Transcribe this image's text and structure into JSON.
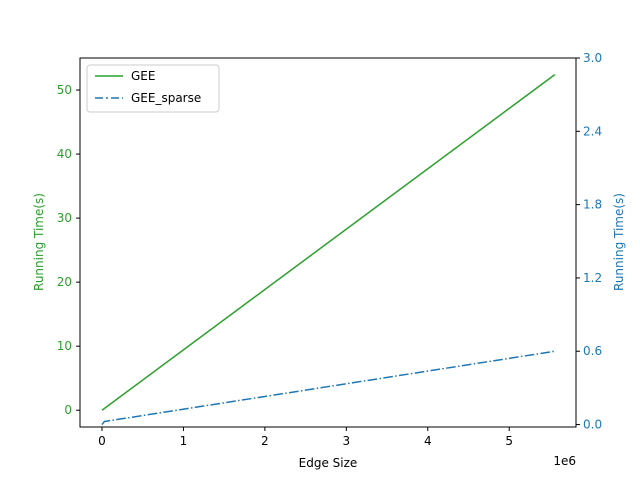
{
  "chart_data": {
    "type": "line",
    "x_scale_note": "1e6",
    "xlabel": "Edge Size",
    "xlim": [
      -270000,
      5820000
    ],
    "x_ticks": [
      0,
      1000000,
      2000000,
      3000000,
      4000000,
      5000000
    ],
    "x_tick_labels": [
      "0",
      "1",
      "2",
      "3",
      "4",
      "5"
    ],
    "y_left": {
      "label": "Running Time(s)",
      "color": "#2ca02c",
      "lim": [
        -2.62,
        55.0
      ],
      "ticks": [
        0,
        10,
        20,
        30,
        40,
        50
      ],
      "tick_labels": [
        "0",
        "10",
        "20",
        "30",
        "40",
        "50"
      ]
    },
    "y_right": {
      "label": "Running Time(s)",
      "color": "#1f77b4",
      "lim": [
        -0.02,
        3.0
      ],
      "ticks": [
        0.0,
        0.6,
        1.2,
        1.8,
        2.4,
        3.0
      ],
      "tick_labels": [
        "0.0",
        "0.6",
        "1.2",
        "1.8",
        "2.4",
        "3.0"
      ]
    },
    "series": [
      {
        "name": "GEE",
        "axis": "left",
        "color": "#2ca02c",
        "dash": "solid",
        "x": [
          0,
          5560000
        ],
        "y": [
          0.0,
          52.4
        ]
      },
      {
        "name": "GEE_sparse",
        "axis": "right",
        "color": "#1f77b4",
        "dash": "dashdot",
        "x": [
          0,
          30000,
          5560000
        ],
        "y": [
          0.0,
          0.025,
          0.6
        ]
      }
    ],
    "legend": {
      "placement": "upper-left",
      "entries": [
        "GEE",
        "GEE_sparse"
      ]
    },
    "grid": false
  }
}
